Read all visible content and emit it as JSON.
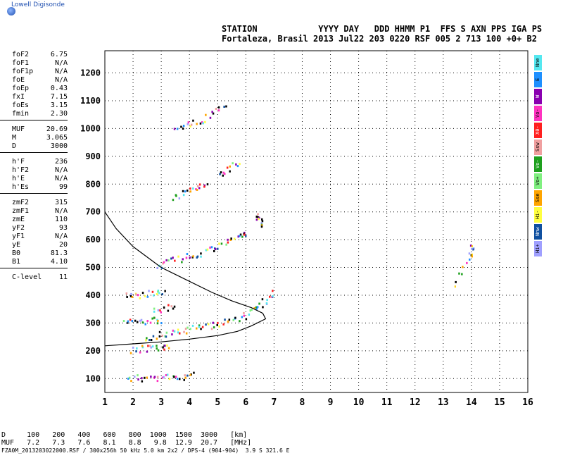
{
  "logo": {
    "text": "Lowell Digisonde",
    "icon": "globe-icon"
  },
  "header": {
    "line1": "STATION            YYYY DAY   DDD HHMM P1  FFS S AXN PPS IGA PS",
    "line2": "Fortaleza, Brasil 2013 Jul22 203 0220 RSF 005 2 713 100 +0+ B2"
  },
  "params": [
    [
      [
        "foF2",
        "6.75"
      ],
      [
        "foF1",
        "N/A"
      ],
      [
        "foF1p",
        "N/A"
      ],
      [
        "foE",
        "N/A"
      ],
      [
        "foEp",
        "0.43"
      ],
      [
        "fxI",
        "7.15"
      ],
      [
        "foEs",
        "3.15"
      ],
      [
        "fmin",
        "2.30"
      ]
    ],
    [
      [
        "MUF",
        "20.69"
      ],
      [
        "M",
        "3.065"
      ],
      [
        "D",
        "3000"
      ]
    ],
    [
      [
        "h'F",
        "236"
      ],
      [
        "h'F2",
        "N/A"
      ],
      [
        "h'E",
        "N/A"
      ],
      [
        "h'Es",
        "99"
      ]
    ],
    [
      [
        "zmF2",
        "315"
      ],
      [
        "zmF1",
        "N/A"
      ],
      [
        "zmE",
        "110"
      ],
      [
        "yF2",
        "93"
      ],
      [
        "yF1",
        "N/A"
      ],
      [
        "yE",
        "20"
      ],
      [
        "B0",
        "81.3"
      ],
      [
        "B1",
        "4.10"
      ]
    ],
    [
      [
        "C-level",
        "11"
      ]
    ]
  ],
  "legend": [
    {
      "label": "Nne",
      "color": "#55e8f0"
    },
    {
      "label": "E",
      "color": "#1e90ff"
    },
    {
      "label": "W",
      "color": "#8a00b0"
    },
    {
      "label": "Vo-",
      "color": "#ff33c0"
    },
    {
      "label": "X0-",
      "color": "#ff2020"
    },
    {
      "label": "Ssw",
      "color": "#f0a0a0"
    },
    {
      "label": "Vo-",
      "color": "#1ea01e"
    },
    {
      "label": "Vo+",
      "color": "#80f080"
    },
    {
      "label": "Sse",
      "color": "#ffa500"
    },
    {
      "label": "Hi-",
      "color": "#ffff40"
    },
    {
      "label": "Nnw",
      "color": "#1050a0"
    },
    {
      "label": "Hi+",
      "color": "#a0a0ff"
    }
  ],
  "footer": {
    "line1": "D     100   200   400   600   800  1000  1500  3000   [km]",
    "line2": "MUF   7.2   7.3   7.6   8.1   8.8   9.8  12.9  20.7   [MHz]",
    "line3": "FZA0M_2013203022000.RSF / 300x256h 50 kHz 5.0 km 2x2 / DPS-4 (904-904)  3.9 S 321.6 E"
  },
  "chart_data": {
    "type": "scatter",
    "xlabel": "",
    "ylabel": "",
    "xlim": [
      1,
      16
    ],
    "ylim": [
      50,
      1280
    ],
    "x_ticks": [
      1,
      2,
      3,
      4,
      5,
      6,
      7,
      8,
      9,
      10,
      11,
      12,
      13,
      14,
      15,
      16
    ],
    "y_ticks": [
      100,
      200,
      300,
      400,
      500,
      600,
      700,
      800,
      900,
      1000,
      1100,
      1200
    ],
    "grid": true,
    "series": [
      {
        "role": "echo-trace",
        "points": [
          [
            1.8,
            105
          ],
          [
            2.5,
            105
          ],
          [
            3.2,
            107
          ],
          [
            3.8,
            110
          ],
          [
            4.2,
            115
          ]
        ]
      },
      {
        "role": "echo-trace",
        "points": [
          [
            1.9,
            205
          ],
          [
            2.5,
            210
          ],
          [
            3.0,
            212
          ],
          [
            3.3,
            210
          ]
        ]
      },
      {
        "role": "echo-trace",
        "points": [
          [
            2.4,
            250
          ],
          [
            3.0,
            262
          ],
          [
            3.8,
            275
          ],
          [
            4.5,
            290
          ],
          [
            5.0,
            300
          ],
          [
            5.5,
            315
          ],
          [
            6.0,
            330
          ],
          [
            6.4,
            360
          ],
          [
            6.7,
            385
          ],
          [
            7.0,
            415
          ]
        ]
      },
      {
        "role": "echo-trace",
        "points": [
          [
            1.7,
            305
          ],
          [
            2.2,
            308
          ],
          [
            2.7,
            310
          ],
          [
            3.0,
            310
          ]
        ]
      },
      {
        "role": "echo-trace",
        "points": [
          [
            1.7,
            405
          ],
          [
            2.2,
            405
          ],
          [
            2.8,
            408
          ],
          [
            3.1,
            415
          ]
        ]
      },
      {
        "role": "echo-trace",
        "points": [
          [
            2.7,
            350
          ],
          [
            3.1,
            355
          ],
          [
            3.5,
            358
          ]
        ]
      },
      {
        "role": "echo-trace",
        "points": [
          [
            2.8,
            510
          ],
          [
            3.5,
            530
          ],
          [
            4.2,
            550
          ],
          [
            4.8,
            570
          ],
          [
            5.3,
            590
          ],
          [
            5.8,
            615
          ],
          [
            6.0,
            630
          ]
        ]
      },
      {
        "role": "echo-trace",
        "points": [
          [
            6.3,
            690
          ],
          [
            6.5,
            670
          ],
          [
            6.6,
            655
          ]
        ]
      },
      {
        "role": "echo-trace",
        "points": [
          [
            3.4,
            755
          ],
          [
            3.9,
            775
          ],
          [
            4.3,
            790
          ],
          [
            4.6,
            805
          ]
        ]
      },
      {
        "role": "echo-trace",
        "points": [
          [
            5.0,
            830
          ],
          [
            5.4,
            860
          ],
          [
            5.8,
            890
          ]
        ]
      },
      {
        "role": "echo-trace",
        "points": [
          [
            3.5,
            1005
          ],
          [
            4.6,
            1040
          ],
          [
            5.3,
            1090
          ]
        ]
      },
      {
        "role": "echo-trace",
        "points": [
          [
            14.0,
            550
          ],
          [
            14.0,
            580
          ],
          [
            13.4,
            435
          ]
        ]
      }
    ],
    "profile_curve": [
      [
        1.0,
        218
      ],
      [
        2.0,
        225
      ],
      [
        3.0,
        232
      ],
      [
        4.0,
        242
      ],
      [
        5.0,
        255
      ],
      [
        5.7,
        270
      ],
      [
        6.2,
        290
      ],
      [
        6.7,
        315
      ],
      [
        6.6,
        335
      ],
      [
        6.2,
        355
      ],
      [
        5.5,
        380
      ],
      [
        4.8,
        410
      ],
      [
        4.0,
        450
      ],
      [
        3.0,
        500
      ],
      [
        2.0,
        575
      ],
      [
        1.4,
        640
      ],
      [
        1.0,
        700
      ]
    ]
  }
}
